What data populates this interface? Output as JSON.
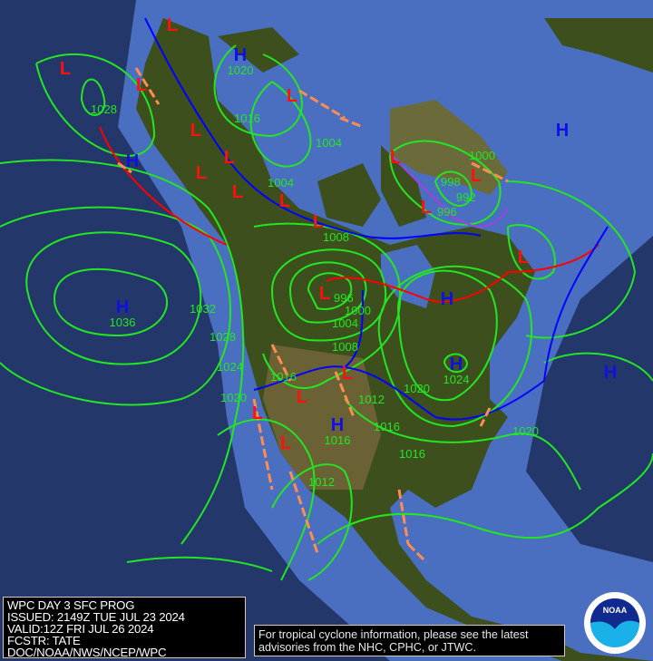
{
  "product": {
    "title": "WPC DAY 3 SFC PROG",
    "issued": "ISSUED: 2149Z TUE JUL 23 2024",
    "valid": "VALID:12Z FRI JUL 26 2024",
    "forecaster": "FCSTR: TATE",
    "agency": "DOC/NOAA/NWS/NCEP/WPC"
  },
  "advisory": {
    "line1": "For tropical cyclone information, please see the latest",
    "line2": "advisories from the NHC, CPHC, or JTWC."
  },
  "logo": {
    "text": "NOAA"
  },
  "colors": {
    "isobar": "#22e622",
    "high": "#1010e0",
    "low": "#ff1010",
    "trough": "#ff8c50",
    "warm_front": "#ff0000",
    "cold_front": "#0000ff",
    "occluded_front": "#a040e0",
    "ocean": "#4a6fc0",
    "deep_ocean": "#24376b",
    "land": "#3d4f1c"
  },
  "pressure_centers": [
    {
      "type": "H",
      "value": "1036"
    },
    {
      "type": "H",
      "value": "1020"
    },
    {
      "type": "H",
      "value": ""
    },
    {
      "type": "H",
      "value": ""
    },
    {
      "type": "H",
      "value": ""
    },
    {
      "type": "H",
      "value": "1024"
    },
    {
      "type": "H",
      "value": "1016"
    },
    {
      "type": "H",
      "value": ""
    },
    {
      "type": "L",
      "value": ""
    },
    {
      "type": "L",
      "value": ""
    },
    {
      "type": "L",
      "value": ""
    },
    {
      "type": "L",
      "value": ""
    },
    {
      "type": "L",
      "value": ""
    },
    {
      "type": "L",
      "value": ""
    },
    {
      "type": "L",
      "value": ""
    },
    {
      "type": "L",
      "value": ""
    },
    {
      "type": "L",
      "value": ""
    },
    {
      "type": "L",
      "value": ""
    },
    {
      "type": "L",
      "value": ""
    },
    {
      "type": "L",
      "value": "996"
    },
    {
      "type": "L",
      "value": ""
    },
    {
      "type": "L",
      "value": ""
    },
    {
      "type": "L",
      "value": ""
    },
    {
      "type": "L",
      "value": ""
    },
    {
      "type": "L",
      "value": ""
    },
    {
      "type": "L",
      "value": ""
    },
    {
      "type": "L",
      "value": ""
    }
  ],
  "isobar_labels": [
    "1028",
    "1016",
    "1004",
    "1004",
    "1008",
    "1000",
    "996",
    "992",
    "1000",
    "1004",
    "1008",
    "1012",
    "1016",
    "1020",
    "1012",
    "1032",
    "1028",
    "1024",
    "1020",
    "1016",
    "1020",
    "1016",
    "998"
  ]
}
